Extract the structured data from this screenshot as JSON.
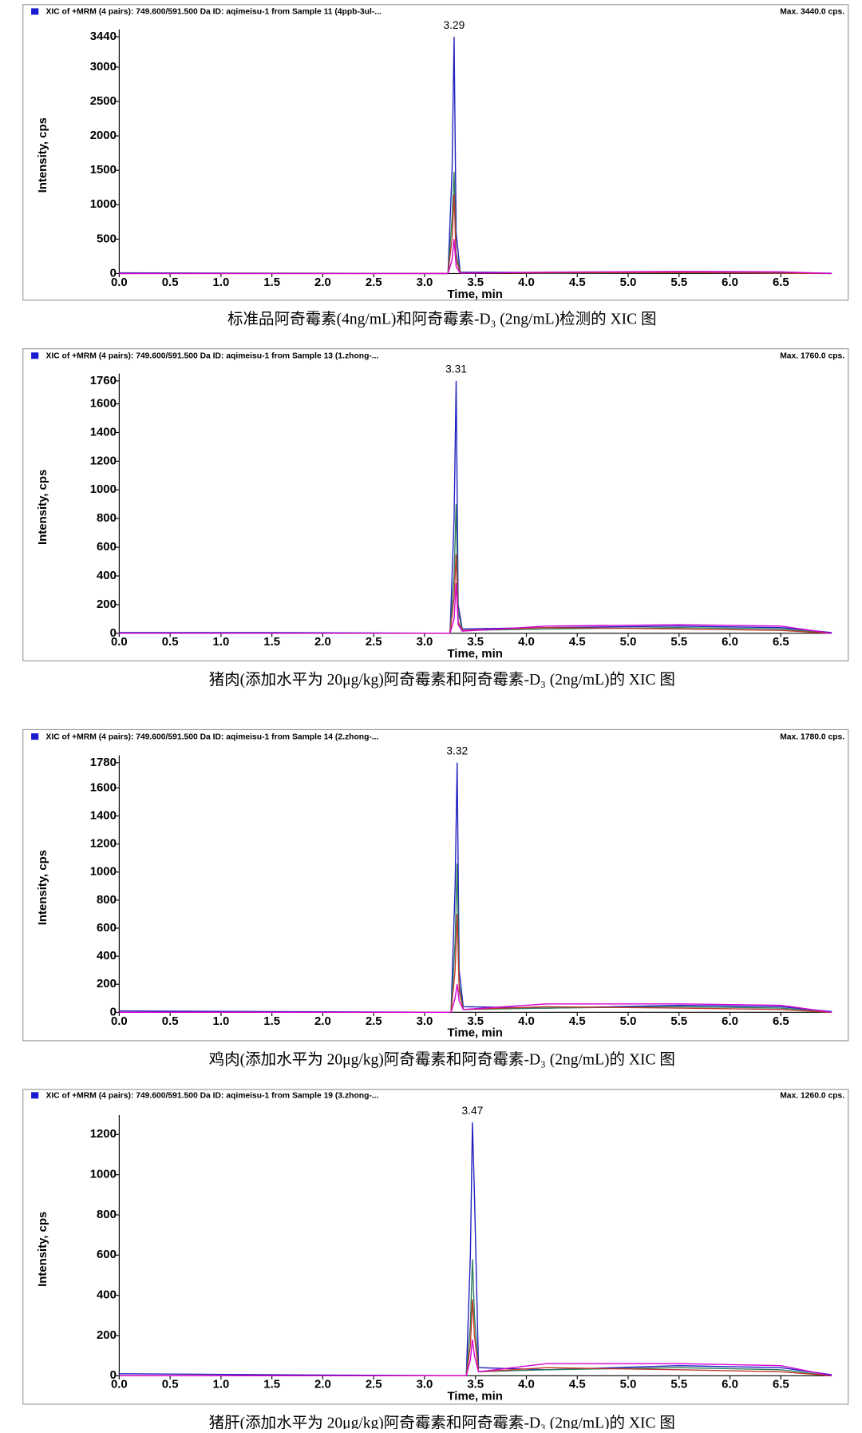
{
  "chart_data": [
    {
      "type": "line",
      "header": "XIC of +MRM (4 pairs): 749.600/591.500 Da ID: aqimeisu-1 from Sample 11 (4ppb-3ul-...",
      "max_label": "Max. 3440.0 cps.",
      "peak_label": "3.29",
      "x_label": "Time, min",
      "y_label": "Intensity, cps",
      "caption": "标准品阿奇霉素(4ng/mL)和阿奇霉素-D₃ (2ng/mL)检测的 XIC 图",
      "xlim": [
        0,
        7
      ],
      "ylim": [
        0,
        3440
      ],
      "xticks": [
        {
          "value": 0,
          "label": "0.0"
        },
        0.5,
        {
          "value": 1,
          "label": "1.0"
        },
        1.5,
        {
          "value": 2,
          "label": "2.0"
        },
        2.5,
        {
          "value": 3,
          "label": "3.0"
        },
        3.5,
        {
          "value": 4,
          "label": "4.0"
        },
        4.5,
        {
          "value": 5,
          "label": "5.0"
        },
        5.5,
        {
          "value": 6,
          "label": "6.0"
        },
        6.5
      ],
      "yticks": [
        0,
        500,
        1000,
        1500,
        2000,
        2500,
        3000,
        3440
      ],
      "x": [
        0,
        1.5,
        3.23,
        3.27,
        3.29,
        3.31,
        3.35,
        4.2,
        5.5,
        6.5,
        7.0
      ],
      "series": [
        {
          "color": "#2020c0",
          "values": [
            10,
            5,
            0,
            1500,
            3440,
            600,
            20,
            15,
            25,
            10,
            5
          ]
        },
        {
          "color": "#2e7d5b",
          "values": [
            0,
            5,
            0,
            800,
            1480,
            300,
            10,
            5,
            10,
            5,
            0
          ]
        },
        {
          "color": "#c0392b",
          "values": [
            0,
            0,
            0,
            500,
            1150,
            200,
            5,
            10,
            15,
            5,
            0
          ]
        },
        {
          "color": "#d400d4",
          "values": [
            0,
            0,
            0,
            200,
            500,
            100,
            5,
            20,
            30,
            25,
            0
          ]
        }
      ]
    },
    {
      "type": "line",
      "header": "XIC of +MRM (4 pairs): 749.600/591.500 Da ID: aqimeisu-1 from Sample 13 (1.zhong-...",
      "max_label": "Max. 1760.0 cps.",
      "peak_label": "3.31",
      "x_label": "Time, min",
      "y_label": "Intensity, cps",
      "caption": "猪肉(添加水平为 20μg/kg)阿奇霉素和阿奇霉素-D₃ (2ng/mL)的 XIC 图",
      "xlim": [
        0,
        7
      ],
      "ylim": [
        0,
        1760
      ],
      "xticks": [
        {
          "value": 0,
          "label": "0.0"
        },
        0.5,
        {
          "value": 1,
          "label": "1.0"
        },
        1.5,
        {
          "value": 2,
          "label": "2.0"
        },
        2.5,
        {
          "value": 3,
          "label": "3.0"
        },
        3.5,
        {
          "value": 4,
          "label": "4.0"
        },
        4.5,
        {
          "value": 5,
          "label": "5.0"
        },
        5.5,
        {
          "value": 6,
          "label": "6.0"
        },
        6.5
      ],
      "yticks": [
        0,
        200,
        400,
        600,
        800,
        1000,
        1200,
        1400,
        1600,
        1760
      ],
      "x": [
        0,
        1.5,
        3.25,
        3.29,
        3.31,
        3.33,
        3.37,
        4.2,
        5.5,
        6.5,
        7.0
      ],
      "series": [
        {
          "color": "#2020c0",
          "values": [
            5,
            5,
            0,
            800,
            1760,
            200,
            30,
            40,
            50,
            40,
            5
          ]
        },
        {
          "color": "#2e7d5b",
          "values": [
            0,
            0,
            0,
            400,
            900,
            150,
            20,
            30,
            40,
            30,
            0
          ]
        },
        {
          "color": "#c0392b",
          "values": [
            0,
            0,
            0,
            250,
            550,
            80,
            20,
            40,
            30,
            20,
            0
          ]
        },
        {
          "color": "#d400d4",
          "values": [
            0,
            0,
            0,
            100,
            350,
            60,
            15,
            50,
            60,
            50,
            0
          ]
        }
      ]
    },
    {
      "type": "line",
      "header": "XIC of +MRM (4 pairs): 749.600/591.500 Da ID: aqimeisu-1 from Sample 14 (2.zhong-...",
      "max_label": "Max. 1780.0 cps.",
      "peak_label": "3.32",
      "x_label": "Time, min",
      "y_label": "Intensity, cps",
      "caption": "鸡肉(添加水平为 20μg/kg)阿奇霉素和阿奇霉素-D₃ (2ng/mL)的 XIC 图",
      "xlim": [
        0,
        7
      ],
      "ylim": [
        0,
        1780
      ],
      "xticks": [
        {
          "value": 0,
          "label": "0.0"
        },
        0.5,
        {
          "value": 1,
          "label": "1.0"
        },
        1.5,
        {
          "value": 2,
          "label": "2.0"
        },
        2.5,
        {
          "value": 3,
          "label": "3.0"
        },
        3.5,
        {
          "value": 4,
          "label": "4.0"
        },
        4.5,
        {
          "value": 5,
          "label": "5.0"
        },
        5.5,
        {
          "value": 6,
          "label": "6.0"
        },
        6.5
      ],
      "yticks": [
        0,
        200,
        400,
        600,
        800,
        1000,
        1200,
        1400,
        1600,
        1780
      ],
      "x": [
        0,
        1.5,
        3.26,
        3.3,
        3.32,
        3.34,
        3.38,
        4.2,
        5.5,
        6.5,
        7.0
      ],
      "series": [
        {
          "color": "#2020c0",
          "values": [
            10,
            5,
            0,
            900,
            1780,
            300,
            40,
            30,
            50,
            40,
            5
          ]
        },
        {
          "color": "#2e7d5b",
          "values": [
            0,
            0,
            0,
            500,
            1060,
            200,
            20,
            30,
            40,
            30,
            0
          ]
        },
        {
          "color": "#c0392b",
          "values": [
            0,
            0,
            0,
            300,
            700,
            150,
            20,
            40,
            30,
            20,
            0
          ]
        },
        {
          "color": "#d400d4",
          "values": [
            0,
            0,
            0,
            100,
            200,
            80,
            20,
            60,
            60,
            50,
            0
          ]
        }
      ]
    },
    {
      "type": "line",
      "header": "XIC of +MRM (4 pairs): 749.600/591.500 Da ID: aqimeisu-1 from Sample 19 (3.zhong-...",
      "max_label": "Max. 1260.0 cps.",
      "peak_label": "3.47",
      "x_label": "Time, min",
      "y_label": "Intensity, cps",
      "caption": "猪肝(添加水平为 20μg/kg)阿奇霉素和阿奇霉素-D₃ (2ng/mL)的 XIC 图",
      "xlim": [
        0,
        7
      ],
      "ylim": [
        0,
        1260
      ],
      "xticks": [
        {
          "value": 0,
          "label": "0.0"
        },
        0.5,
        {
          "value": 1,
          "label": "1.0"
        },
        1.5,
        {
          "value": 2,
          "label": "2.0"
        },
        2.5,
        {
          "value": 3,
          "label": "3.0"
        },
        3.5,
        {
          "value": 4,
          "label": "4.0"
        },
        4.5,
        {
          "value": 5,
          "label": "5.0"
        },
        5.5,
        {
          "value": 6,
          "label": "6.0"
        },
        6.5
      ],
      "yticks": [
        0,
        200,
        400,
        600,
        800,
        1000,
        1200
      ],
      "x": [
        0,
        1.5,
        3.41,
        3.45,
        3.47,
        3.49,
        3.53,
        4.2,
        5.5,
        6.5,
        7.0
      ],
      "series": [
        {
          "color": "#2020c0",
          "values": [
            10,
            5,
            0,
            600,
            1260,
            900,
            40,
            30,
            50,
            40,
            5
          ]
        },
        {
          "color": "#2e7d5b",
          "values": [
            0,
            0,
            0,
            250,
            580,
            300,
            20,
            30,
            40,
            30,
            0
          ]
        },
        {
          "color": "#c0392b",
          "values": [
            0,
            0,
            0,
            150,
            380,
            200,
            20,
            40,
            30,
            20,
            0
          ]
        },
        {
          "color": "#d400d4",
          "values": [
            0,
            0,
            0,
            80,
            180,
            100,
            20,
            60,
            60,
            50,
            0
          ]
        }
      ]
    }
  ]
}
